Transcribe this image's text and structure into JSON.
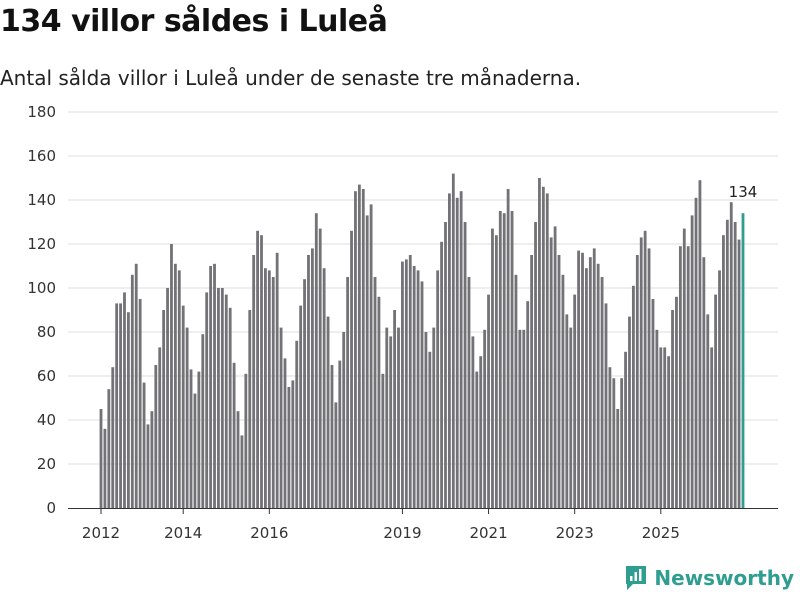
{
  "header": {
    "title": "134 villor såldes i Luleå",
    "subtitle": "Antal sålda villor i Luleå under de senaste tre månaderna."
  },
  "brand": {
    "name": "Newsworthy",
    "color": "#2f9d8f"
  },
  "chart_data": {
    "type": "bar",
    "title": "134 villor såldes i Luleå",
    "subtitle": "Antal sålda villor i Luleå under de senaste tre månaderna.",
    "xlabel": "",
    "ylabel": "",
    "ylim": [
      0,
      180
    ],
    "yticks": [
      0,
      20,
      40,
      60,
      80,
      100,
      120,
      140,
      160,
      180
    ],
    "xtick_labels": [
      {
        "label": "2012",
        "index": 0
      },
      {
        "label": "2014",
        "index": 21
      },
      {
        "label": "2016",
        "index": 43
      },
      {
        "label": "2019",
        "index": 77
      },
      {
        "label": "2021",
        "index": 99
      },
      {
        "label": "2023",
        "index": 121
      },
      {
        "label": "2025",
        "index": 143
      }
    ],
    "grid": true,
    "bar_color": "#737276",
    "highlight_color": "#2f9d8f",
    "highlight_label": "134",
    "values": [
      45,
      36,
      54,
      64,
      93,
      93,
      98,
      89,
      106,
      111,
      95,
      57,
      38,
      44,
      65,
      73,
      90,
      100,
      120,
      111,
      108,
      92,
      82,
      63,
      52,
      62,
      79,
      98,
      110,
      111,
      100,
      100,
      97,
      91,
      66,
      44,
      33,
      61,
      90,
      115,
      126,
      124,
      109,
      108,
      105,
      116,
      82,
      68,
      55,
      58,
      76,
      92,
      104,
      115,
      118,
      134,
      127,
      109,
      87,
      65,
      48,
      67,
      80,
      105,
      126,
      144,
      147,
      145,
      133,
      138,
      105,
      96,
      61,
      82,
      78,
      90,
      82,
      112,
      113,
      115,
      110,
      108,
      103,
      80,
      71,
      82,
      108,
      121,
      130,
      143,
      152,
      141,
      144,
      130,
      105,
      78,
      62,
      69,
      81,
      97,
      127,
      124,
      135,
      134,
      145,
      135,
      106,
      81,
      81,
      94,
      115,
      130,
      150,
      146,
      143,
      123,
      128,
      115,
      106,
      88,
      82,
      97,
      117,
      116,
      109,
      114,
      118,
      111,
      105,
      93,
      64,
      59,
      45,
      59,
      71,
      87,
      101,
      115,
      123,
      126,
      118,
      95,
      81,
      73,
      73,
      69,
      90,
      96,
      119,
      127,
      119,
      133,
      141,
      149,
      114,
      88,
      73,
      97,
      108,
      124,
      131,
      139,
      130,
      122,
      134
    ]
  }
}
